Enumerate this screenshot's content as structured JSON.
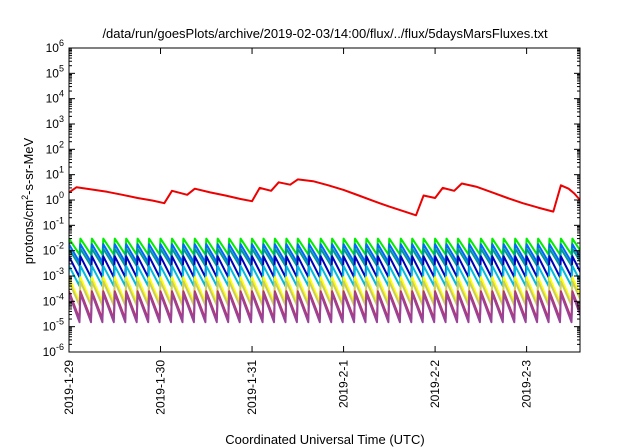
{
  "chart_data": {
    "type": "line",
    "title": "/data/run/goesPlots/archive/2019-02-03/14:00/flux/../flux/5daysMarsFluxes.txt",
    "xlabel": "Coordinated Universal Time (UTC)",
    "ylabel": {
      "prefix": "protons/cm",
      "sup": "2",
      "suffix": "-s-sr-MeV"
    },
    "y_scale": "log",
    "ylim": [
      "1e-6",
      "1e6"
    ],
    "xlim": [
      "2019-01-29T00:00",
      "2019-02-03T14:00"
    ],
    "y_ticks": [
      {
        "base": "10",
        "exp": "-6",
        "value": 1e-06
      },
      {
        "base": "10",
        "exp": "-5",
        "value": 1e-05
      },
      {
        "base": "10",
        "exp": "-4",
        "value": 0.0001
      },
      {
        "base": "10",
        "exp": "-3",
        "value": 0.001
      },
      {
        "base": "10",
        "exp": "-2",
        "value": 0.01
      },
      {
        "base": "10",
        "exp": "-1",
        "value": 0.1
      },
      {
        "base": "10",
        "exp": "0",
        "value": 1
      },
      {
        "base": "10",
        "exp": "1",
        "value": 10
      },
      {
        "base": "10",
        "exp": "2",
        "value": 100
      },
      {
        "base": "10",
        "exp": "3",
        "value": 1000
      },
      {
        "base": "10",
        "exp": "4",
        "value": 10000
      },
      {
        "base": "10",
        "exp": "5",
        "value": 100000
      },
      {
        "base": "10",
        "exp": "6",
        "value": 1000000
      }
    ],
    "x_ticks": [
      {
        "label": "2019-1-29",
        "date": "2019-01-29T00:00"
      },
      {
        "label": "2019-1-30",
        "date": "2019-01-30T00:00"
      },
      {
        "label": "2019-1-31",
        "date": "2019-01-31T00:00"
      },
      {
        "label": "2019-2-1",
        "date": "2019-02-01T00:00"
      },
      {
        "label": "2019-2-2",
        "date": "2019-02-02T00:00"
      },
      {
        "label": "2019-2-3",
        "date": "2019-02-03T00:00"
      }
    ],
    "grid": false,
    "legend": "none",
    "series": [
      {
        "color": "#ee0000",
        "points": [
          [
            "2019-01-29T00:00",
            2.0
          ],
          [
            "2019-01-29T02:00",
            3.2
          ],
          [
            "2019-01-29T06:00",
            2.6
          ],
          [
            "2019-01-29T10:00",
            2.1
          ],
          [
            "2019-01-29T14:00",
            1.6
          ],
          [
            "2019-01-29T18:00",
            1.2
          ],
          [
            "2019-01-29T22:00",
            0.95
          ],
          [
            "2019-01-30T01:00",
            0.75
          ],
          [
            "2019-01-30T03:00",
            2.3
          ],
          [
            "2019-01-30T07:00",
            1.6
          ],
          [
            "2019-01-30T09:00",
            2.8
          ],
          [
            "2019-01-30T13:00",
            2.0
          ],
          [
            "2019-01-30T17:00",
            1.5
          ],
          [
            "2019-01-30T21:00",
            1.1
          ],
          [
            "2019-01-31T00:00",
            0.9
          ],
          [
            "2019-01-31T02:00",
            3.0
          ],
          [
            "2019-01-31T05:00",
            2.3
          ],
          [
            "2019-01-31T07:00",
            5.0
          ],
          [
            "2019-01-31T10:00",
            4.0
          ],
          [
            "2019-01-31T12:00",
            6.5
          ],
          [
            "2019-01-31T16:00",
            5.5
          ],
          [
            "2019-01-31T20:00",
            3.8
          ],
          [
            "2019-02-01T00:00",
            2.5
          ],
          [
            "2019-02-01T04:00",
            1.5
          ],
          [
            "2019-02-01T08:00",
            0.9
          ],
          [
            "2019-02-01T12:00",
            0.55
          ],
          [
            "2019-02-01T16:00",
            0.35
          ],
          [
            "2019-02-01T19:00",
            0.25
          ],
          [
            "2019-02-01T21:00",
            1.5
          ],
          [
            "2019-02-02T00:00",
            1.2
          ],
          [
            "2019-02-02T02:00",
            3.0
          ],
          [
            "2019-02-02T05:00",
            2.3
          ],
          [
            "2019-02-02T07:00",
            4.5
          ],
          [
            "2019-02-02T11:00",
            3.3
          ],
          [
            "2019-02-02T15:00",
            2.0
          ],
          [
            "2019-02-02T19:00",
            1.2
          ],
          [
            "2019-02-02T23:00",
            0.75
          ],
          [
            "2019-02-03T03:00",
            0.5
          ],
          [
            "2019-02-03T07:00",
            0.35
          ],
          [
            "2019-02-03T09:00",
            3.8
          ],
          [
            "2019-02-03T11:00",
            2.8
          ],
          [
            "2019-02-03T12:30",
            1.8
          ],
          [
            "2019-02-03T14:00",
            1.0
          ]
        ]
      }
    ],
    "oscillating_series": [
      {
        "color": "#00ee00",
        "low": 0.007,
        "high": 0.03
      },
      {
        "color": "#0066ff",
        "low": 0.0035,
        "high": 0.018
      },
      {
        "color": "#009999",
        "low": 0.0025,
        "high": 0.012
      },
      {
        "color": "#0000bb",
        "low": 0.0009,
        "high": 0.006
      },
      {
        "color": "#00bbdd",
        "low": 0.0004,
        "high": 0.0025
      },
      {
        "color": "#ffff00",
        "low": 9e-05,
        "high": 0.0009
      },
      {
        "color": "#cccc66",
        "low": 7e-05,
        "high": 0.0006
      },
      {
        "color": "#bb3366",
        "low": 2e-05,
        "high": 0.00025
      },
      {
        "color": "#994499",
        "low": 1.5e-05,
        "high": 0.0002
      }
    ]
  }
}
